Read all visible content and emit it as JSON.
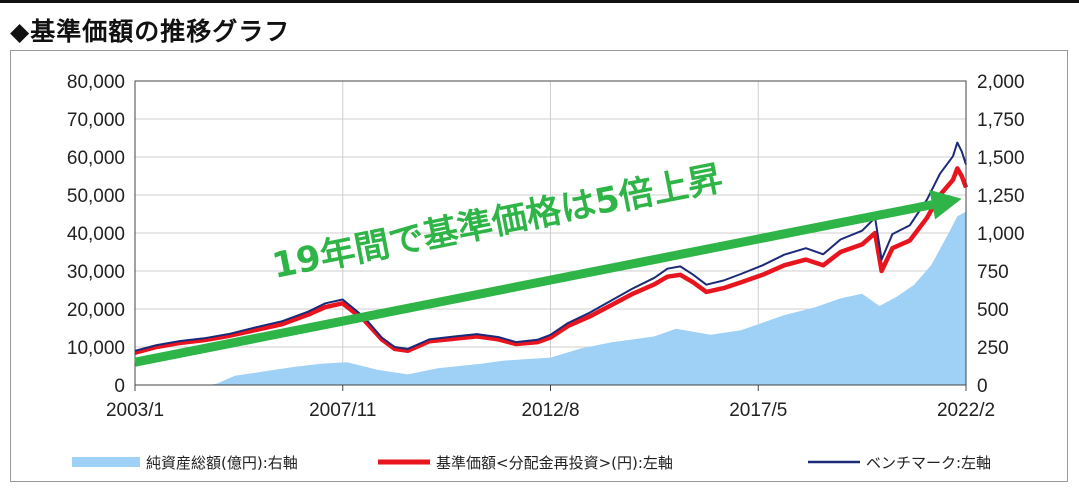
{
  "title": "◆基準価額の推移グラフ",
  "chart_data": {
    "type": "line",
    "x_ticks": [
      "2003/1",
      "2007/11",
      "2012/8",
      "2017/5",
      "2022/2"
    ],
    "y_left": {
      "min": 0,
      "max": 80000,
      "ticks": [
        "0",
        "10,000",
        "20,000",
        "30,000",
        "40,000",
        "50,000",
        "60,000",
        "70,000",
        "80,000"
      ]
    },
    "y_right": {
      "min": 0,
      "max": 2000,
      "ticks": [
        "0",
        "250",
        "500",
        "750",
        "1,000",
        "1,250",
        "1,500",
        "1,750",
        "2,000"
      ]
    },
    "x_range": [
      2003.0,
      2022.2
    ],
    "series": [
      {
        "name": "純資産総額(億円):右軸",
        "kind": "area",
        "axis": "right",
        "color": "#9fd0f5",
        "points": [
          [
            2003.0,
            0
          ],
          [
            2004.7,
            0
          ],
          [
            2004.9,
            10
          ],
          [
            2005.3,
            60
          ],
          [
            2006.0,
            90
          ],
          [
            2006.7,
            120
          ],
          [
            2007.3,
            140
          ],
          [
            2007.9,
            150
          ],
          [
            2008.6,
            100
          ],
          [
            2009.3,
            70
          ],
          [
            2010.0,
            110
          ],
          [
            2011.0,
            140
          ],
          [
            2011.5,
            160
          ],
          [
            2012.0,
            170
          ],
          [
            2012.6,
            180
          ],
          [
            2013.3,
            240
          ],
          [
            2014.0,
            280
          ],
          [
            2015.0,
            320
          ],
          [
            2015.5,
            370
          ],
          [
            2016.3,
            330
          ],
          [
            2017.0,
            360
          ],
          [
            2017.5,
            410
          ],
          [
            2018.0,
            460
          ],
          [
            2018.7,
            510
          ],
          [
            2019.3,
            570
          ],
          [
            2019.8,
            600
          ],
          [
            2020.2,
            520
          ],
          [
            2020.6,
            580
          ],
          [
            2021.0,
            660
          ],
          [
            2021.4,
            790
          ],
          [
            2021.8,
            1000
          ],
          [
            2022.0,
            1110
          ],
          [
            2022.2,
            1140
          ]
        ]
      },
      {
        "name": "基準価額<分配金再投資>(円):左軸",
        "kind": "line",
        "axis": "left",
        "color": "#e8141e",
        "points": [
          [
            2003.0,
            8500
          ],
          [
            2003.5,
            10000
          ],
          [
            2004.0,
            11000
          ],
          [
            2004.6,
            11800
          ],
          [
            2005.2,
            13000
          ],
          [
            2005.8,
            14500
          ],
          [
            2006.4,
            16000
          ],
          [
            2007.0,
            18500
          ],
          [
            2007.4,
            20500
          ],
          [
            2007.8,
            21500
          ],
          [
            2008.3,
            17000
          ],
          [
            2008.7,
            12000
          ],
          [
            2009.0,
            9500
          ],
          [
            2009.3,
            9000
          ],
          [
            2009.8,
            11500
          ],
          [
            2010.4,
            12200
          ],
          [
            2010.9,
            12800
          ],
          [
            2011.4,
            12000
          ],
          [
            2011.8,
            10800
          ],
          [
            2012.3,
            11300
          ],
          [
            2012.6,
            12500
          ],
          [
            2013.0,
            15500
          ],
          [
            2013.5,
            18000
          ],
          [
            2014.0,
            21000
          ],
          [
            2014.5,
            24000
          ],
          [
            2015.0,
            26500
          ],
          [
            2015.3,
            28500
          ],
          [
            2015.6,
            29000
          ],
          [
            2015.9,
            27000
          ],
          [
            2016.2,
            24500
          ],
          [
            2016.6,
            25500
          ],
          [
            2017.0,
            27000
          ],
          [
            2017.5,
            29000
          ],
          [
            2018.0,
            31500
          ],
          [
            2018.5,
            33000
          ],
          [
            2018.9,
            31500
          ],
          [
            2019.3,
            35000
          ],
          [
            2019.8,
            37000
          ],
          [
            2020.1,
            40000
          ],
          [
            2020.25,
            30000
          ],
          [
            2020.5,
            36000
          ],
          [
            2020.9,
            38000
          ],
          [
            2021.3,
            44000
          ],
          [
            2021.6,
            50000
          ],
          [
            2021.9,
            54000
          ],
          [
            2022.0,
            57000
          ],
          [
            2022.1,
            55000
          ],
          [
            2022.2,
            52000
          ]
        ]
      },
      {
        "name": "ベンチマーク:左軸",
        "kind": "line",
        "axis": "left",
        "color": "#1c2a7a",
        "points": [
          [
            2003.0,
            9000
          ],
          [
            2003.5,
            10500
          ],
          [
            2004.0,
            11500
          ],
          [
            2004.6,
            12300
          ],
          [
            2005.2,
            13500
          ],
          [
            2005.8,
            15200
          ],
          [
            2006.4,
            16800
          ],
          [
            2007.0,
            19300
          ],
          [
            2007.4,
            21500
          ],
          [
            2007.8,
            22500
          ],
          [
            2008.3,
            17800
          ],
          [
            2008.7,
            12500
          ],
          [
            2009.0,
            10000
          ],
          [
            2009.3,
            9500
          ],
          [
            2009.8,
            12000
          ],
          [
            2010.4,
            12800
          ],
          [
            2010.9,
            13400
          ],
          [
            2011.4,
            12600
          ],
          [
            2011.8,
            11300
          ],
          [
            2012.3,
            11900
          ],
          [
            2012.6,
            13200
          ],
          [
            2013.0,
            16300
          ],
          [
            2013.5,
            19000
          ],
          [
            2014.0,
            22200
          ],
          [
            2014.5,
            25400
          ],
          [
            2015.0,
            28200
          ],
          [
            2015.3,
            30600
          ],
          [
            2015.6,
            31200
          ],
          [
            2015.9,
            29000
          ],
          [
            2016.2,
            26400
          ],
          [
            2016.6,
            27500
          ],
          [
            2017.0,
            29200
          ],
          [
            2017.5,
            31500
          ],
          [
            2018.0,
            34300
          ],
          [
            2018.5,
            36000
          ],
          [
            2018.9,
            34400
          ],
          [
            2019.3,
            38300
          ],
          [
            2019.8,
            40600
          ],
          [
            2020.1,
            44000
          ],
          [
            2020.25,
            33000
          ],
          [
            2020.5,
            39700
          ],
          [
            2020.9,
            42000
          ],
          [
            2021.3,
            48800
          ],
          [
            2021.6,
            55600
          ],
          [
            2021.9,
            60200
          ],
          [
            2022.0,
            63800
          ],
          [
            2022.1,
            61500
          ],
          [
            2022.2,
            58000
          ]
        ]
      }
    ],
    "annotation": {
      "text": "19年間で基準価格は5倍上昇",
      "color": "#2fb547",
      "arrow_from": [
        2003.0,
        6000
      ],
      "arrow_to": [
        2022.1,
        49000
      ]
    },
    "legend": {
      "position": "bottom"
    }
  }
}
